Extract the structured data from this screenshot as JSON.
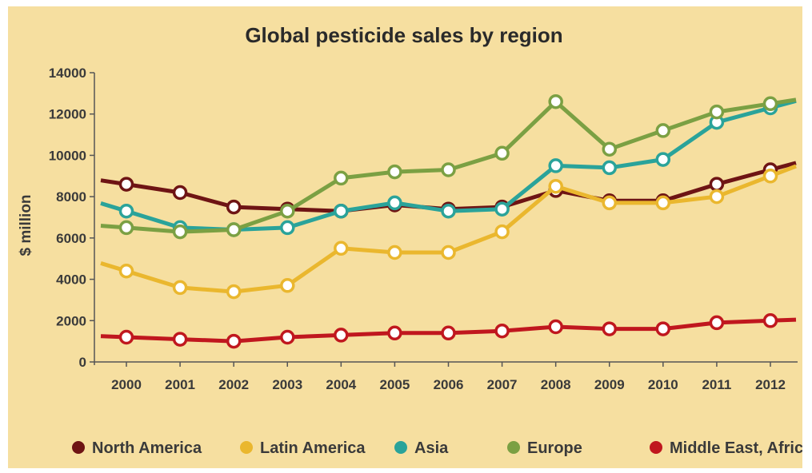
{
  "chart_data": {
    "type": "line",
    "title": "Global pesticide sales by region",
    "xlabel": "",
    "ylabel": "$ million",
    "ylim": [
      0,
      14000
    ],
    "yticks": [
      "0",
      "2000",
      "4000",
      "6000",
      "8000",
      "10000",
      "12000",
      "14000"
    ],
    "categories": [
      "2000",
      "2001",
      "2002",
      "2003",
      "2004",
      "2005",
      "2006",
      "2007",
      "2008",
      "2009",
      "2010",
      "2011",
      "2012"
    ],
    "grid": false,
    "legend_position": "bottom",
    "series": [
      {
        "name": "North America",
        "color": "#6e1414",
        "values": [
          8600,
          8200,
          7500,
          7400,
          7300,
          7600,
          7400,
          7500,
          8300,
          7800,
          7800,
          8600,
          9300
        ]
      },
      {
        "name": "Latin America",
        "color": "#eab72e",
        "values": [
          4400,
          3600,
          3400,
          3700,
          5500,
          5300,
          5300,
          6300,
          8500,
          7700,
          7700,
          8000,
          9000
        ]
      },
      {
        "name": "Asia",
        "color": "#2aa39a",
        "values": [
          7300,
          6500,
          6400,
          6500,
          7300,
          7700,
          7300,
          7400,
          9500,
          9400,
          9800,
          11600,
          12300
        ]
      },
      {
        "name": "Europe",
        "color": "#7ba043",
        "values": [
          6500,
          6300,
          6400,
          7300,
          8900,
          9200,
          9300,
          10100,
          12600,
          10300,
          11200,
          12100,
          12500
        ]
      },
      {
        "name": "Middle East, Africa",
        "color": "#c0171e",
        "values": [
          1200,
          1100,
          1000,
          1200,
          1300,
          1400,
          1400,
          1500,
          1700,
          1600,
          1600,
          1900,
          2000
        ]
      }
    ]
  }
}
